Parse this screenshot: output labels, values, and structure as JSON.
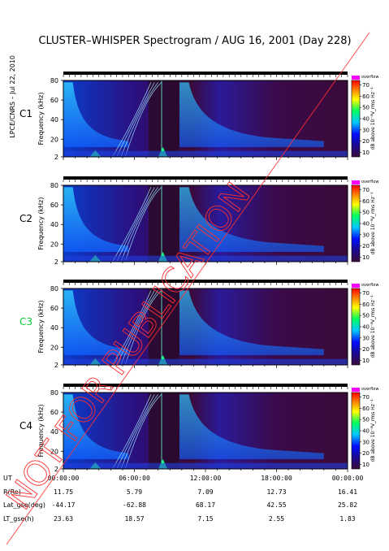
{
  "chart_data": {
    "type": "heatmap",
    "title": "CLUSTER–WHISPER Spectrogram / AUG 16, 2001 (Day 228)",
    "side_credit": "LPCE/CNRS – Jul 22, 2010",
    "watermark": "NOT FOR PUBLICATION",
    "ylabel": "Frequency (kHz)",
    "yticks": [
      2,
      20,
      40,
      60,
      80
    ],
    "ylim": [
      2,
      80
    ],
    "xticks": [
      "00:00:00",
      "06:00:00",
      "12:00:00",
      "18:00:00",
      "00:00:00"
    ],
    "xlim_hours": [
      0,
      24
    ],
    "colorbar": {
      "label": "dB above 10⁻⁸V_rms Hz⁻¹",
      "top_text": "overflow",
      "ticks": [
        10,
        20,
        30,
        40,
        50,
        60,
        70
      ],
      "range": [
        10,
        70
      ],
      "colors": [
        "#3a0a3a",
        "#1a0a90",
        "#0010ff",
        "#00c8ff",
        "#00ff60",
        "#ffff00",
        "#ff8000",
        "#ff0000"
      ]
    },
    "panels": [
      {
        "name": "C1",
        "label_color": "#000000"
      },
      {
        "name": "C2",
        "label_color": "#000000"
      },
      {
        "name": "C3",
        "label_color": "#00cc33"
      },
      {
        "name": "C4",
        "label_color": "#000000"
      }
    ],
    "ephemeris": {
      "labels": [
        "UT",
        "R(Re)",
        "Lat_gse(deg)",
        "LT_gse(h)"
      ],
      "columns": [
        [
          "00:00:00",
          "11.75",
          "-44.17",
          "23.63"
        ],
        [
          "06:00:00",
          "5.79",
          "-62.88",
          "18.57"
        ],
        [
          "12:00:00",
          "7.09",
          "68.17",
          "7.15"
        ],
        [
          "18:00:00",
          "12.73",
          "42.55",
          "2.55"
        ],
        [
          "00:00:00",
          "16.41",
          "25.82",
          "1.83"
        ]
      ]
    }
  }
}
